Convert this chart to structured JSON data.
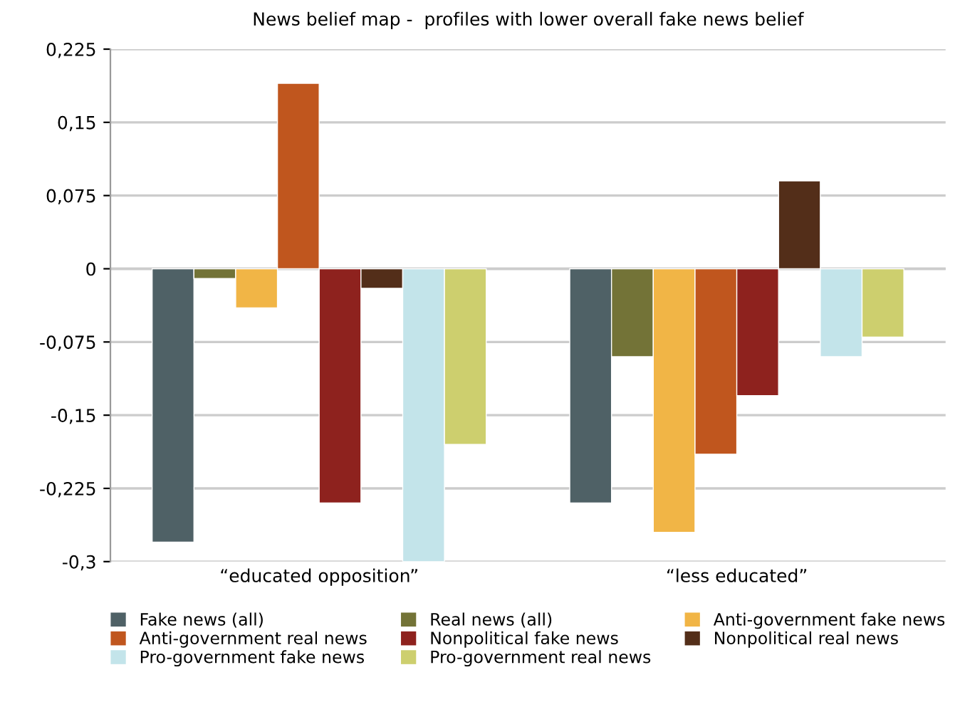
{
  "chart_data": {
    "type": "bar",
    "title": "News belief map -  profiles with lower overall fake news belief",
    "categories": [
      "“educated opposition”",
      "“less educated”"
    ],
    "series": [
      {
        "name": "Fake news (all)",
        "color": "#4f6166",
        "values": [
          -0.28,
          -0.24
        ]
      },
      {
        "name": "Real news (all)",
        "color": "#737337",
        "values": [
          -0.01,
          -0.09
        ]
      },
      {
        "name": "Anti-government fake news",
        "color": "#f1b546",
        "values": [
          -0.04,
          -0.27
        ]
      },
      {
        "name": "Anti-government real news",
        "color": "#c0561e",
        "values": [
          0.19,
          -0.19
        ]
      },
      {
        "name": "Nonpolitical fake news",
        "color": "#8e221e",
        "values": [
          -0.24,
          -0.13
        ]
      },
      {
        "name": "Nonpolitical real news",
        "color": "#532e19",
        "values": [
          -0.02,
          0.09
        ]
      },
      {
        "name": "Pro-government fake news",
        "color": "#c3e4ea",
        "values": [
          -0.3,
          -0.09
        ]
      },
      {
        "name": "Pro-government real news",
        "color": "#cdcf6e",
        "values": [
          -0.18,
          -0.07
        ]
      }
    ],
    "ylim": [
      -0.3,
      0.225
    ],
    "yticks": [
      {
        "value": -0.3,
        "label": "-0,3"
      },
      {
        "value": -0.225,
        "label": "-0,225"
      },
      {
        "value": -0.15,
        "label": "-0,15"
      },
      {
        "value": -0.075,
        "label": "-0,075"
      },
      0,
      {
        "value": 0.075,
        "label": "0,075"
      },
      {
        "value": 0.15,
        "label": "0,15"
      },
      {
        "value": 0.225,
        "label": "0,225"
      }
    ],
    "grid": "y",
    "legend": "bottom"
  }
}
